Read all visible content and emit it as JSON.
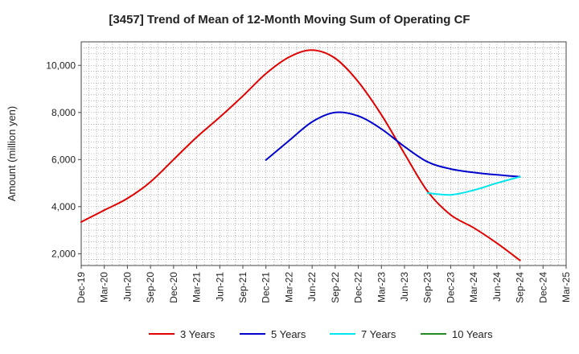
{
  "chart_data": {
    "type": "line",
    "title": "[3457]  Trend of Mean of 12-Month Moving Sum of Operating CF",
    "xlabel": "",
    "ylabel": "Amount (million yen)",
    "ylim": [
      1500,
      11000
    ],
    "yticks": [
      2000,
      4000,
      6000,
      8000,
      10000
    ],
    "ytick_labels": [
      "2,000",
      "4,000",
      "6,000",
      "8,000",
      "10,000"
    ],
    "categories": [
      "Dec-19",
      "Mar-20",
      "Jun-20",
      "Sep-20",
      "Dec-20",
      "Mar-21",
      "Jun-21",
      "Sep-21",
      "Dec-21",
      "Mar-22",
      "Jun-22",
      "Sep-22",
      "Dec-22",
      "Mar-23",
      "Jun-23",
      "Sep-23",
      "Dec-23",
      "Mar-24",
      "Jun-24",
      "Sep-24",
      "Dec-24",
      "Mar-25"
    ],
    "grid": true,
    "legend_position": "bottom",
    "series": [
      {
        "name": "3 Years",
        "color": "#e00000",
        "values": [
          3350,
          3850,
          4350,
          5050,
          6000,
          6950,
          7800,
          8700,
          9650,
          10350,
          10650,
          10300,
          9300,
          7900,
          6250,
          4650,
          3650,
          3100,
          2450,
          1720,
          null,
          null
        ]
      },
      {
        "name": "5 Years",
        "color": "#0000cc",
        "values": [
          null,
          null,
          null,
          null,
          null,
          null,
          null,
          null,
          5980,
          6800,
          7600,
          8000,
          7850,
          7300,
          6550,
          5900,
          5600,
          5450,
          5350,
          5270,
          null,
          null
        ]
      },
      {
        "name": "7 Years",
        "color": "#00e5ee",
        "values": [
          null,
          null,
          null,
          null,
          null,
          null,
          null,
          null,
          null,
          null,
          null,
          null,
          null,
          null,
          null,
          4580,
          4500,
          4700,
          5000,
          5270,
          null,
          null
        ]
      },
      {
        "name": "10 Years",
        "color": "#228b22",
        "values": [
          null,
          null,
          null,
          null,
          null,
          null,
          null,
          null,
          null,
          null,
          null,
          null,
          null,
          null,
          null,
          null,
          null,
          null,
          null,
          null,
          null,
          null
        ]
      }
    ]
  }
}
